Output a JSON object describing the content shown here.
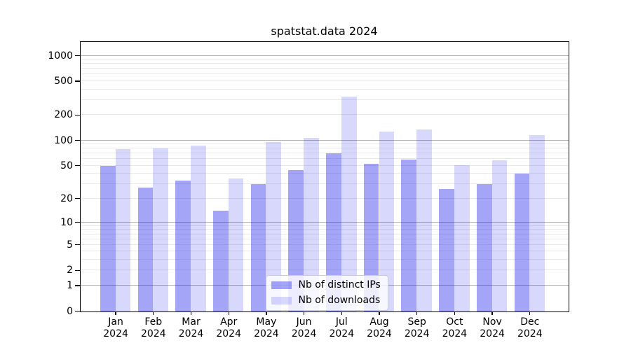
{
  "chart_data": {
    "type": "bar",
    "title": "spatstat.data 2024",
    "months": [
      "Jan",
      "Feb",
      "Mar",
      "Apr",
      "May",
      "Jun",
      "Jul",
      "Aug",
      "Sep",
      "Oct",
      "Nov",
      "Dec"
    ],
    "year": "2024",
    "series": [
      {
        "name": "Nb of distinct IPs",
        "color_hex": "#a4a4f8",
        "color_css": "rgba(10,10,235,0.37)",
        "values": [
          50,
          27,
          33,
          14,
          30,
          44,
          70,
          53,
          59,
          26,
          30,
          40
        ]
      },
      {
        "name": "Nb of downloads",
        "color_hex": "#d8d8fc",
        "color_css": "rgba(10,10,235,0.16)",
        "values": [
          79,
          81,
          87,
          35,
          95,
          108,
          330,
          127,
          135,
          51,
          58,
          115
        ]
      }
    ],
    "yscale": "log1p",
    "ylim": [
      0,
      1490
    ],
    "y_ticks": [
      0,
      1,
      2,
      5,
      10,
      20,
      50,
      100,
      200,
      500,
      1000
    ],
    "major_gridlines": [
      1,
      10,
      100,
      1000
    ],
    "minor_gridlines": [
      2,
      3,
      4,
      5,
      6,
      7,
      8,
      9,
      20,
      30,
      40,
      50,
      60,
      70,
      80,
      90,
      200,
      300,
      400,
      500,
      600,
      700,
      800,
      900
    ],
    "grid": "on",
    "legend_position": "lower center inside plot",
    "colors": {
      "major_grid": "#b3b3b3",
      "minor_grid": "#eaeaea",
      "spine": "#000000",
      "background": "#ffffff"
    }
  }
}
